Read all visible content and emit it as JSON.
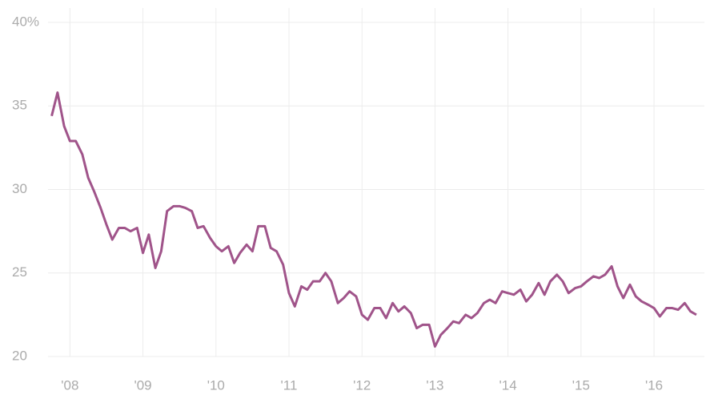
{
  "chart_data": {
    "type": "line",
    "x": [
      2007.75,
      2007.83,
      2007.92,
      2008,
      2008.08,
      2008.17,
      2008.25,
      2008.33,
      2008.42,
      2008.5,
      2008.58,
      2008.67,
      2008.75,
      2008.83,
      2008.92,
      2009,
      2009.08,
      2009.17,
      2009.25,
      2009.33,
      2009.42,
      2009.5,
      2009.58,
      2009.67,
      2009.75,
      2009.83,
      2009.92,
      2010,
      2010.08,
      2010.17,
      2010.25,
      2010.33,
      2010.42,
      2010.5,
      2010.58,
      2010.67,
      2010.75,
      2010.83,
      2010.92,
      2011,
      2011.08,
      2011.17,
      2011.25,
      2011.33,
      2011.42,
      2011.5,
      2011.58,
      2011.67,
      2011.75,
      2011.83,
      2011.92,
      2012,
      2012.08,
      2012.17,
      2012.25,
      2012.33,
      2012.42,
      2012.5,
      2012.58,
      2012.67,
      2012.75,
      2012.83,
      2012.92,
      2013,
      2013.08,
      2013.17,
      2013.25,
      2013.33,
      2013.42,
      2013.5,
      2013.58,
      2013.67,
      2013.75,
      2013.83,
      2013.92,
      2014,
      2014.08,
      2014.17,
      2014.25,
      2014.33,
      2014.42,
      2014.5,
      2014.58,
      2014.67,
      2014.75,
      2014.83,
      2014.92,
      2015,
      2015.08,
      2015.17,
      2015.25,
      2015.33,
      2015.42,
      2015.5,
      2015.58,
      2015.67,
      2015.75,
      2015.83,
      2015.92,
      2016,
      2016.08,
      2016.17,
      2016.25,
      2016.33,
      2016.42,
      2016.5,
      2016.58
    ],
    "series": [
      {
        "color": "#a0548a",
        "values": [
          34.4,
          35.8,
          33.8,
          32.9,
          32.9,
          32.1,
          30.7,
          29.9,
          28.9,
          27.9,
          27.0,
          27.7,
          27.7,
          27.5,
          27.7,
          26.2,
          27.3,
          25.3,
          26.3,
          28.7,
          29.0,
          29.0,
          28.9,
          28.7,
          27.7,
          27.8,
          27.1,
          26.6,
          26.3,
          26.6,
          25.6,
          26.2,
          26.7,
          26.3,
          27.8,
          27.8,
          26.5,
          26.3,
          25.5,
          23.8,
          23.0,
          24.2,
          24.0,
          24.5,
          24.5,
          25.0,
          24.5,
          23.2,
          23.5,
          23.9,
          23.6,
          22.5,
          22.2,
          22.9,
          22.9,
          22.3,
          23.2,
          22.7,
          23.0,
          22.6,
          21.7,
          21.9,
          21.9,
          20.6,
          21.3,
          21.7,
          22.1,
          22.0,
          22.5,
          22.3,
          22.6,
          23.2,
          23.4,
          23.2,
          23.9,
          23.8,
          23.7,
          24.0,
          23.3,
          23.7,
          24.4,
          23.7,
          24.5,
          24.9,
          24.5,
          23.8,
          24.1,
          24.2,
          24.5,
          24.8,
          24.7,
          24.9,
          25.4,
          24.2,
          23.5,
          24.3,
          23.6,
          23.3,
          23.1,
          22.9,
          22.4,
          22.9,
          22.9,
          22.8,
          23.2,
          22.7,
          22.5
        ]
      }
    ],
    "xlim": [
      2007.7,
      2016.69
    ],
    "xticks": [
      {
        "value": 2008,
        "label": "'08"
      },
      {
        "value": 2009,
        "label": "'09"
      },
      {
        "value": 2010,
        "label": "'10"
      },
      {
        "value": 2011,
        "label": "'11"
      },
      {
        "value": 2012,
        "label": "'12"
      },
      {
        "value": 2013,
        "label": "'13"
      },
      {
        "value": 2014,
        "label": "'14"
      },
      {
        "value": 2015,
        "label": "'15"
      },
      {
        "value": 2016,
        "label": "'16"
      }
    ],
    "ylim": [
      20,
      40
    ],
    "yticks": [
      20,
      25,
      30,
      35,
      {
        "value": 40,
        "label": "40%"
      }
    ],
    "grid": true
  }
}
